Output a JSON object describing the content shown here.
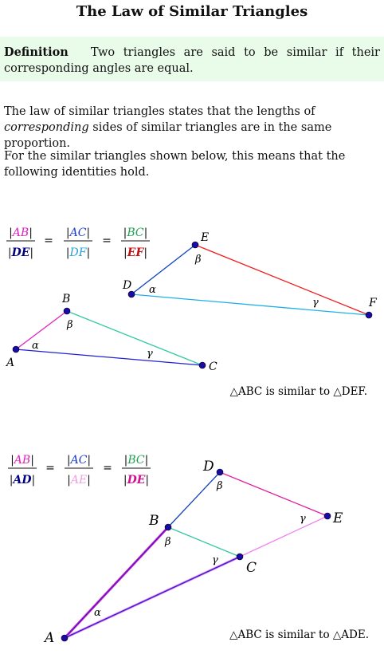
{
  "title": "The Law of Similar Triangles",
  "definition": {
    "keyword": "Definition",
    "text": "Two triangles are said to be similar if their corresponding angles are equal."
  },
  "paragraph1": {
    "before": "The law of similar triangles states that the lengths of ",
    "emphasis": "corresponding",
    "after": " sides of similar triangles are in the same proportion."
  },
  "paragraph2": "For the similar triangles shown below, this means that the following identities hold.",
  "figure1": {
    "ratios": [
      {
        "num": "AB",
        "den": "DE",
        "num_color": "#e020c0",
        "den_color": "#000080"
      },
      {
        "num": "AC",
        "den": "DF",
        "num_color": "#2040d0",
        "den_color": "#20a0e0"
      },
      {
        "num": "BC",
        "den": "EF",
        "num_color": "#20a050",
        "den_color": "#c01010"
      }
    ],
    "vertices": {
      "A": "A",
      "B": "B",
      "C": "C",
      "D": "D",
      "E": "E",
      "F": "F"
    },
    "angles": {
      "alpha": "α",
      "beta": "β",
      "gamma": "γ"
    },
    "caption": "△ABC is similar to △DEF."
  },
  "figure2": {
    "ratios": [
      {
        "num": "AB",
        "den": "AD",
        "num_color": "#e020c0",
        "den_color": "#000080"
      },
      {
        "num": "AC",
        "den": "AE",
        "num_color": "#2040d0",
        "den_color": "#f0a0e0"
      },
      {
        "num": "BC",
        "den": "DE",
        "num_color": "#20a050",
        "den_color": "#d01090"
      }
    ],
    "vertices": {
      "A": "A",
      "B": "B",
      "C": "C",
      "D": "D",
      "E": "E"
    },
    "angles": {
      "alpha": "α",
      "beta": "β",
      "gamma": "γ"
    },
    "caption": "△ABC is similar to △ADE."
  },
  "colors": {
    "definition_bg": "#e9fbe9",
    "vertex_dot": "#1a0aa8",
    "line_AB": "#e020c0",
    "line_AC": "#2020d0",
    "line_BC": "#30c8a0",
    "line_DE": "#1040c0",
    "line_DF": "#20b0e8",
    "line_EF": "#f02020",
    "line_BD": "#1040c0",
    "line_DE2": "#e020a0",
    "line_CE": "#f080f0"
  }
}
